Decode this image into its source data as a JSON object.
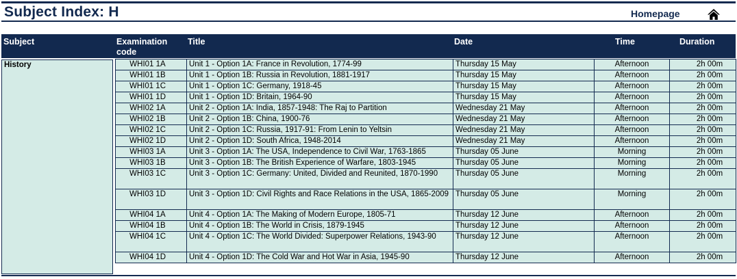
{
  "header": {
    "title": "Subject Index: H",
    "home_label": "Homepage"
  },
  "table": {
    "columns": {
      "subject": "Subject",
      "code": "Examination code",
      "title": "Title",
      "date": "Date",
      "time": "Time",
      "duration": "Duration"
    },
    "subject": "History",
    "rows": [
      {
        "code": "WHI01 1A",
        "title": "Unit 1 - Option 1A: France in Revolution, 1774-99",
        "date": "Thursday 15 May",
        "time": "Afternoon",
        "duration": "2h 00m"
      },
      {
        "code": "WHI01 1B",
        "title": "Unit 1 - Option 1B: Russia in Revolution, 1881-1917",
        "date": "Thursday 15 May",
        "time": "Afternoon",
        "duration": "2h 00m"
      },
      {
        "code": "WHI01 1C",
        "title": "Unit 1 - Option 1C: Germany, 1918-45",
        "date": "Thursday 15 May",
        "time": "Afternoon",
        "duration": "2h 00m"
      },
      {
        "code": "WHI01 1D",
        "title": "Unit 1 - Option 1D: Britain, 1964-90",
        "date": "Thursday 15 May",
        "time": "Afternoon",
        "duration": "2h 00m"
      },
      {
        "code": "WHI02 1A",
        "title": "Unit 2 - Option 1A: India, 1857-1948: The Raj to Partition",
        "date": "Wednesday 21 May",
        "time": "Afternoon",
        "duration": "2h 00m"
      },
      {
        "code": "WHI02 1B",
        "title": "Unit 2 - Option 1B: China, 1900-76",
        "date": "Wednesday 21 May",
        "time": "Afternoon",
        "duration": "2h 00m"
      },
      {
        "code": "WHI02 1C",
        "title": "Unit 2 - Option 1C: Russia, 1917-91: From Lenin to Yeltsin",
        "date": "Wednesday 21 May",
        "time": "Afternoon",
        "duration": "2h 00m"
      },
      {
        "code": "WHI02 1D",
        "title": "Unit 2 - Option 1D: South Africa, 1948-2014",
        "date": "Wednesday 21 May",
        "time": "Afternoon",
        "duration": "2h 00m"
      },
      {
        "code": "WHI03 1A",
        "title": "Unit 3 - Option 1A: The USA, Independence to Civil War, 1763-1865",
        "date": "Thursday 05 June",
        "time": "Morning",
        "duration": "2h 00m"
      },
      {
        "code": "WHI03 1B",
        "title": "Unit 3 - Option 1B: The British Experience of Warfare, 1803-1945",
        "date": "Thursday 05 June",
        "time": "Morning",
        "duration": "2h 00m"
      },
      {
        "code": "WHI03 1C",
        "title": "Unit 3 - Option 1C: Germany: United, Divided and Reunited, 1870-1990",
        "date": "Thursday 05 June",
        "time": "Morning",
        "duration": "2h 00m"
      },
      {
        "code": "WHI03 1D",
        "title": "Unit 3 - Option 1D: Civil Rights and Race Relations in the USA, 1865-2009",
        "date": "Thursday 05 June",
        "time": "Morning",
        "duration": "2h 00m"
      },
      {
        "code": "WHI04 1A",
        "title": "Unit 4 - Option 1A: The Making of Modern Europe, 1805-71",
        "date": "Thursday 12 June",
        "time": "Afternoon",
        "duration": "2h 00m"
      },
      {
        "code": "WHI04 1B",
        "title": "Unit 4 - Option 1B: The World in Crisis, 1879-1945",
        "date": "Thursday 12 June",
        "time": "Afternoon",
        "duration": "2h 00m"
      },
      {
        "code": "WHI04 1C",
        "title": "Unit 4 - Option 1C: The World Divided: Superpower Relations, 1943-90",
        "date": "Thursday 12 June",
        "time": "Afternoon",
        "duration": "2h 00m"
      },
      {
        "code": "WHI04 1D",
        "title": "Unit 4 - Option 1D: The Cold War and Hot War in Asia, 1945-90",
        "date": "Thursday 12 June",
        "time": "Afternoon",
        "duration": "2h 00m"
      }
    ]
  },
  "icons": {
    "home": "home-icon"
  },
  "colors": {
    "navy": "#12294f",
    "cell_bg": "#d4ebe6"
  }
}
